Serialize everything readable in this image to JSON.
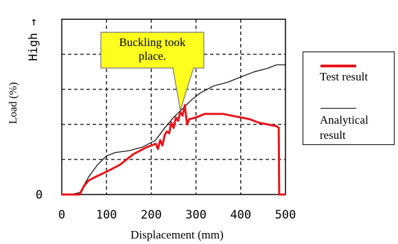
{
  "chart_data": {
    "type": "line",
    "xlabel": "Displacement (mm)",
    "ylabel": "Load (%)",
    "ylabel_high": "High →",
    "x_ticks": [
      0,
      100,
      200,
      300,
      400,
      500
    ],
    "y_ticks": [
      "0"
    ],
    "xlim": [
      0,
      500
    ],
    "ylim": [
      0,
      100
    ],
    "grid": true,
    "legend_position": "right",
    "annotation": "Buckling took place.",
    "series": [
      {
        "name": "Test result",
        "color": "#e8141b",
        "x": [
          0,
          20,
          40,
          50,
          60,
          75,
          100,
          130,
          160,
          190,
          210,
          215,
          220,
          225,
          230,
          235,
          240,
          245,
          250,
          255,
          260,
          265,
          270,
          275,
          280,
          285,
          300,
          320,
          340,
          360,
          380,
          400,
          420,
          440,
          460,
          480,
          485,
          486,
          488,
          500
        ],
        "y": [
          0,
          0,
          0,
          5,
          8,
          10,
          13,
          17,
          23,
          27,
          29,
          26,
          31,
          28,
          34,
          36,
          35,
          41,
          38,
          44,
          42,
          47,
          45,
          51,
          40,
          43,
          44,
          46,
          46,
          46,
          45,
          44,
          43,
          41,
          40,
          39,
          38,
          0,
          0,
          0
        ]
      },
      {
        "name": "Analytical result",
        "color": "#000000",
        "x": [
          0,
          20,
          40,
          60,
          80,
          100,
          120,
          150,
          180,
          210,
          230,
          250,
          270,
          290,
          310,
          340,
          370,
          400,
          430,
          460,
          480,
          500
        ],
        "y": [
          0,
          0,
          1,
          10,
          17,
          22,
          24,
          25,
          27,
          31,
          38,
          44,
          49,
          54,
          58,
          62,
          64,
          67,
          70,
          72,
          74,
          74
        ]
      }
    ]
  },
  "legend": {
    "test_label": "Test result",
    "analytical_label_1": "Analytical",
    "analytical_label_2": "result"
  }
}
